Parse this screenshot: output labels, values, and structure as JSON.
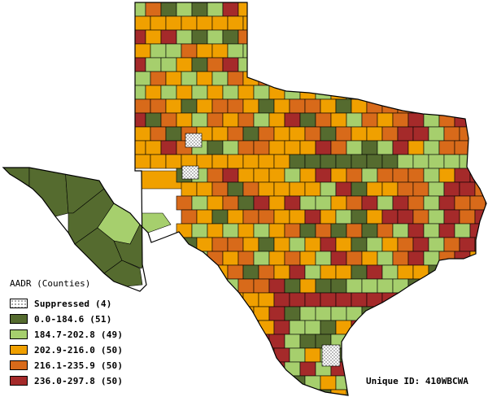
{
  "legend": {
    "title": "AADR (Counties)",
    "items": [
      {
        "label": "Suppressed (4)",
        "color": "#ffffff",
        "pattern": "dots"
      },
      {
        "label": "0.0-184.6 (51)",
        "color": "#556b2f"
      },
      {
        "label": "184.7-202.8 (49)",
        "color": "#a6cf6d"
      },
      {
        "label": "202.9-216.0 (50)",
        "color": "#f0a000"
      },
      {
        "label": "216.1-235.9 (50)",
        "color": "#d86a1a"
      },
      {
        "label": "236.0-297.8 (50)",
        "color": "#a52a2a"
      }
    ]
  },
  "footer": {
    "unique_id": "Unique ID: 410WBCWA"
  },
  "map": {
    "region": "Texas",
    "colors": {
      "c1": "#556b2f",
      "c2": "#a6cf6d",
      "c3": "#f0a000",
      "c4": "#d86a1a",
      "c5": "#a52a2a",
      "border": "#000000"
    }
  }
}
